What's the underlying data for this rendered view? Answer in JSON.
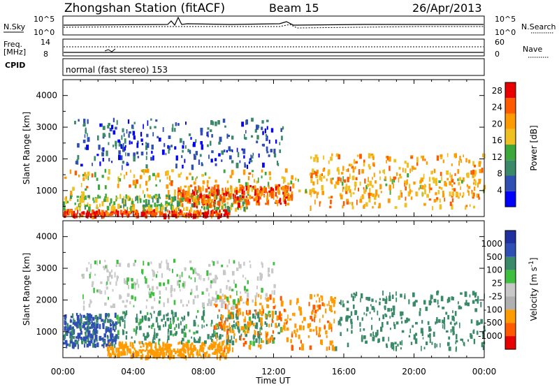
{
  "header": {
    "station": "Zhongshan Station (fitACF)",
    "beam": "Beam 15",
    "date": "26/Apr/2013"
  },
  "aux_panels": {
    "nsky_label": "N.Sky",
    "nsky_top": "10^5",
    "nsky_bottom": "10^0",
    "nsearch_label": "N.Search",
    "nsearch_top": "10^5",
    "nsearch_bottom": "10^0",
    "freq_label": "Freq.",
    "freq_unit": "[MHz]",
    "freq_top": "14",
    "freq_bottom": "8",
    "nave_label": "Nave",
    "nave_top": "60",
    "nave_bottom": "0",
    "cpid_label": "CPID",
    "cpid_value": "normal (fast stereo) 153"
  },
  "colors": {
    "power_scale": [
      "#0000ff",
      "#2f4fb4",
      "#3a8a6a",
      "#3ca83c",
      "#f0c020",
      "#ff9a00",
      "#ff5a00",
      "#e80000"
    ],
    "velocity_scale": [
      "#e80000",
      "#ff5a00",
      "#ff9a00",
      "#b0b0b0",
      "#c8c8c8",
      "#3fbf3f",
      "#3a8a6a",
      "#2f4fb4",
      "#2030a0"
    ]
  },
  "chart_data": [
    {
      "type": "heatmap",
      "title": "",
      "xlabel": "Time UT",
      "ylabel": "Slant Range [km]",
      "xlim": [
        "00:00",
        "24:00"
      ],
      "ylim": [
        180,
        4500
      ],
      "x_ticks": [
        "00:00",
        "04:00",
        "08:00",
        "12:00",
        "16:00",
        "20:00",
        "00:00"
      ],
      "y_ticks": [
        1000,
        2000,
        3000,
        4000
      ],
      "colorbar": {
        "label": "Power [dB]",
        "ticks": [
          4,
          8,
          12,
          16,
          20,
          24,
          28
        ],
        "range": [
          0,
          30
        ]
      },
      "scatter_regions": [
        {
          "time_start_h": 0.0,
          "time_end_h": 9.5,
          "range_km": [
            250,
            420
          ],
          "level_db": 26
        },
        {
          "time_start_h": 0.0,
          "time_end_h": 10.5,
          "range_km": [
            450,
            900
          ],
          "level_db": 14
        },
        {
          "time_start_h": 0.0,
          "time_end_h": 24.0,
          "range_km": [
            900,
            1700
          ],
          "level_db": 18
        },
        {
          "time_start_h": 6.5,
          "time_end_h": 13.0,
          "range_km": [
            600,
            1200
          ],
          "level_db": 24
        },
        {
          "time_start_h": 14.0,
          "time_end_h": 24.0,
          "range_km": [
            500,
            2200
          ],
          "level_db": 20
        },
        {
          "time_start_h": 0.5,
          "time_end_h": 12.5,
          "range_km": [
            1800,
            3300
          ],
          "level_db": 6
        }
      ]
    },
    {
      "type": "heatmap",
      "title": "",
      "xlabel": "Time UT",
      "ylabel": "Slant Range [km]",
      "xlim": [
        "00:00",
        "24:00"
      ],
      "ylim": [
        180,
        4500
      ],
      "x_ticks": [
        "00:00",
        "04:00",
        "08:00",
        "12:00",
        "16:00",
        "20:00",
        "00:00"
      ],
      "y_ticks": [
        1000,
        2000,
        3000,
        4000
      ],
      "colorbar": {
        "label": "Velocity [m s^-1]",
        "ticks": [
          1000,
          500,
          100,
          25,
          -25,
          -100,
          -500,
          -1000
        ]
      },
      "scatter_regions": [
        {
          "time_start_h": 0.0,
          "time_end_h": 3.0,
          "range_km": [
            600,
            1600
          ],
          "velocity_ms": 600
        },
        {
          "time_start_h": 2.5,
          "time_end_h": 9.5,
          "range_km": [
            250,
            700
          ],
          "velocity_ms": -300
        },
        {
          "time_start_h": 3.0,
          "time_end_h": 12.5,
          "range_km": [
            700,
            1700
          ],
          "velocity_ms": 150
        },
        {
          "time_start_h": 8.5,
          "time_end_h": 15.5,
          "range_km": [
            500,
            2200
          ],
          "velocity_ms": -400
        },
        {
          "time_start_h": 15.5,
          "time_end_h": 24.0,
          "range_km": [
            500,
            2300
          ],
          "velocity_ms": 200
        },
        {
          "time_start_h": 1.0,
          "time_end_h": 12.0,
          "range_km": [
            1800,
            3300
          ],
          "velocity_ms": 20
        }
      ]
    }
  ]
}
